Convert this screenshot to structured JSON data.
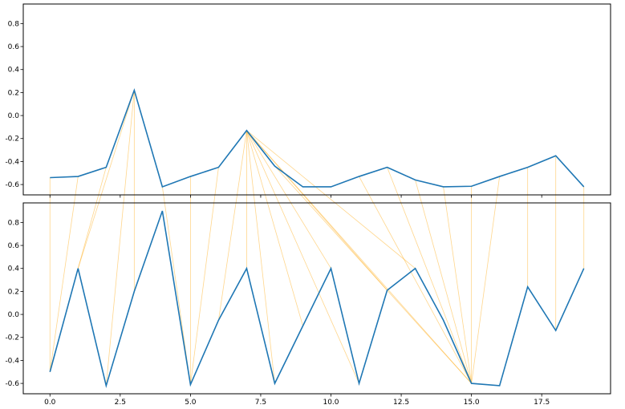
{
  "chart_data": {
    "type": "line",
    "description_free": true,
    "x_ticks": [
      "0.0",
      "2.5",
      "5.0",
      "7.5",
      "10.0",
      "12.5",
      "15.0",
      "17.5"
    ],
    "x_tick_values": [
      0,
      2.5,
      5,
      7.5,
      10,
      12.5,
      15,
      17.5
    ],
    "xlim": [
      -0.95,
      19.95
    ],
    "colors": {
      "line": "#1f77b4",
      "connector": "#ffa500",
      "frame": "#000000"
    },
    "top": {
      "y_ticks": [
        "0.8",
        "0.6",
        "0.4",
        "0.2",
        "0.0",
        "-0.2",
        "-0.4",
        "-0.6"
      ],
      "y_tick_values": [
        0.8,
        0.6,
        0.4,
        0.2,
        0.0,
        -0.2,
        -0.4,
        -0.6
      ],
      "ylim": [
        -0.69,
        0.97
      ],
      "x": [
        0,
        1,
        2,
        3,
        4,
        5,
        6,
        7,
        8,
        9,
        10,
        11,
        12,
        13,
        14,
        15,
        16,
        17,
        18,
        19
      ],
      "y": [
        -0.54,
        -0.53,
        -0.45,
        0.22,
        -0.62,
        -0.53,
        -0.45,
        -0.13,
        -0.44,
        -0.62,
        -0.62,
        -0.53,
        -0.45,
        -0.56,
        -0.62,
        -0.615,
        -0.53,
        -0.45,
        -0.35,
        -0.62
      ]
    },
    "bottom": {
      "y_ticks": [
        "0.8",
        "0.6",
        "0.4",
        "0.2",
        "0.0",
        "-0.2",
        "-0.4",
        "-0.6"
      ],
      "y_tick_values": [
        0.8,
        0.6,
        0.4,
        0.2,
        0.0,
        -0.2,
        -0.4,
        -0.6
      ],
      "ylim": [
        -0.69,
        0.97
      ],
      "x": [
        0,
        1,
        2,
        3,
        4,
        5,
        6,
        7,
        8,
        9,
        10,
        11,
        12,
        13,
        14,
        15,
        16,
        17,
        18,
        19
      ],
      "y": [
        -0.5,
        0.4,
        -0.62,
        0.2,
        0.9,
        -0.61,
        -0.05,
        0.4,
        -0.6,
        -0.1,
        0.4,
        -0.6,
        0.21,
        0.4,
        -0.05,
        -0.6,
        -0.62,
        0.24,
        -0.14,
        0.4
      ]
    },
    "connections": [
      [
        0,
        0
      ],
      [
        1,
        0
      ],
      [
        2,
        1
      ],
      [
        3,
        1
      ],
      [
        3,
        2
      ],
      [
        3,
        3
      ],
      [
        4,
        5
      ],
      [
        5,
        5
      ],
      [
        6,
        5
      ],
      [
        7,
        6
      ],
      [
        7,
        7
      ],
      [
        7,
        8
      ],
      [
        7,
        9
      ],
      [
        7,
        10
      ],
      [
        7,
        11
      ],
      [
        7,
        12
      ],
      [
        7,
        13
      ],
      [
        7,
        15
      ],
      [
        8,
        15
      ],
      [
        11,
        15
      ],
      [
        12,
        15
      ],
      [
        13,
        15
      ],
      [
        14,
        15
      ],
      [
        15,
        15
      ],
      [
        16,
        15
      ],
      [
        17,
        17
      ],
      [
        18,
        18
      ],
      [
        19,
        19
      ]
    ]
  }
}
